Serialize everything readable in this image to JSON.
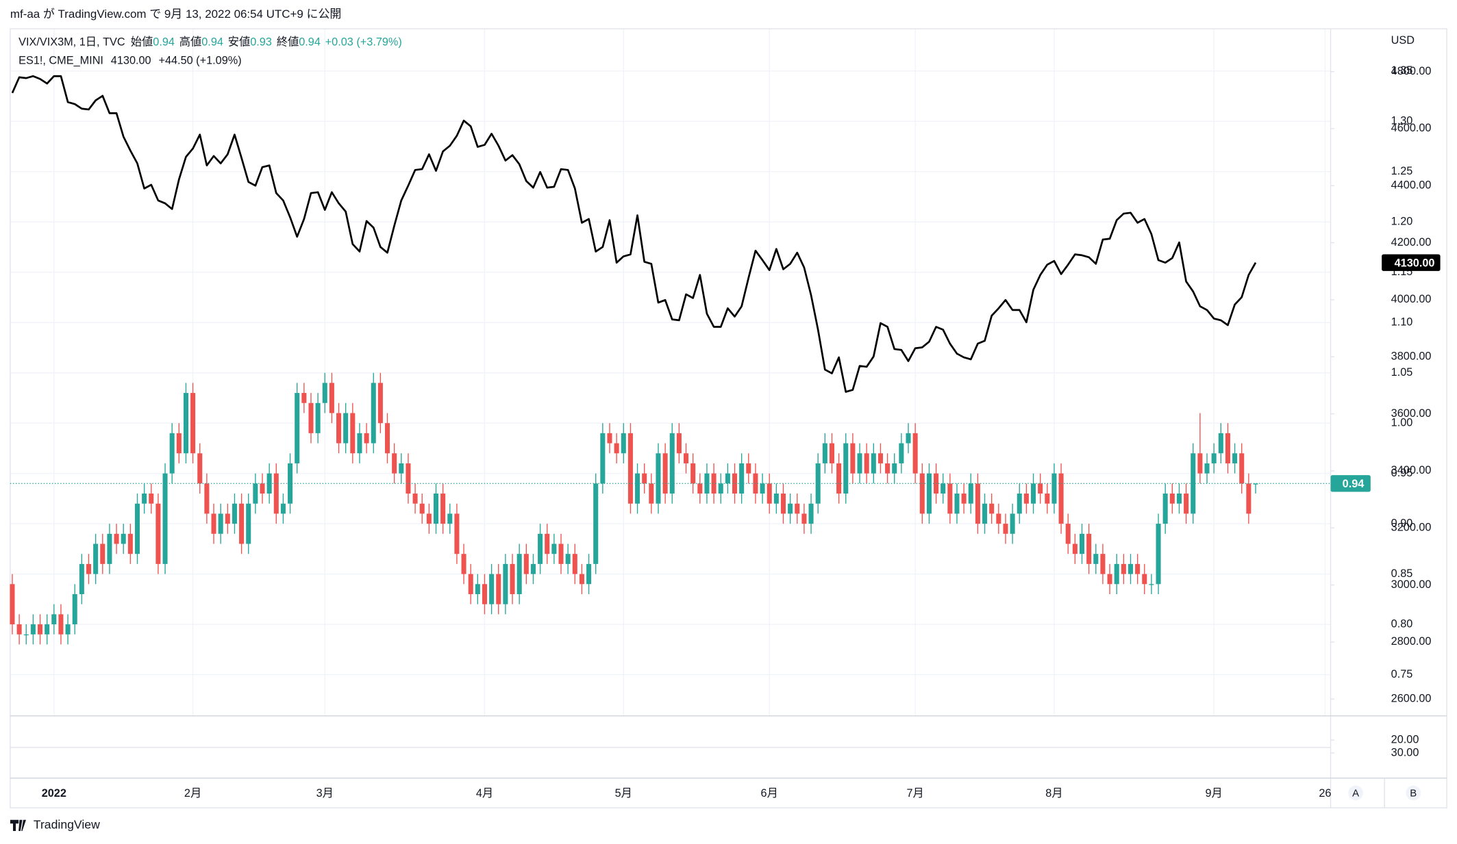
{
  "header": {
    "published": "mf-aa が TradingView.com で 9月 13, 2022 06:54 UTC+9 に公開",
    "brand": "TradingView",
    "buttons": [
      "A",
      "B"
    ]
  },
  "chart_data": {
    "type": "candlestick",
    "legend": {
      "ohlc_labels": [
        "始値",
        "高値",
        "安値",
        "終値"
      ]
    },
    "currency": "USD",
    "x": [
      0,
      1,
      2,
      3,
      4,
      5,
      6,
      7,
      8,
      9,
      10,
      11,
      12,
      13,
      14,
      15,
      16,
      17,
      18,
      19,
      20,
      21,
      22,
      23,
      24,
      25,
      26,
      27,
      28,
      29,
      30,
      31,
      32,
      33,
      34,
      35,
      36,
      37,
      38,
      39,
      40,
      41,
      42,
      43,
      44,
      45,
      46,
      47,
      48,
      49,
      50,
      51,
      52,
      53,
      54,
      55,
      56,
      57,
      58,
      59,
      60,
      61,
      62,
      63,
      64,
      65,
      66,
      67,
      68,
      69,
      70,
      71,
      72,
      73,
      74,
      75,
      76,
      77,
      78,
      79,
      80,
      81,
      82,
      83,
      84,
      85,
      86,
      87,
      88,
      89,
      90,
      91,
      92,
      93,
      94,
      95,
      96,
      97,
      98,
      99,
      100,
      101,
      102,
      103,
      104,
      105,
      106,
      107,
      108,
      109,
      110,
      111,
      112,
      113,
      114,
      115,
      116,
      117,
      118,
      119,
      120,
      121,
      122,
      123,
      124,
      125,
      126,
      127,
      128,
      129,
      130,
      131,
      132,
      133,
      134,
      135,
      136,
      137,
      138,
      139,
      140,
      141,
      142,
      143,
      144,
      145,
      146,
      147,
      148,
      149,
      150,
      151,
      152,
      153,
      154,
      155,
      156,
      157,
      158,
      159,
      160,
      161,
      162,
      163,
      164,
      165,
      166,
      167,
      168,
      169,
      170,
      171,
      172,
      173,
      174,
      175,
      176,
      177,
      178,
      179
    ],
    "xlim": [
      -0.3,
      189.8
    ],
    "xticks": [
      {
        "value": 6,
        "label": "2022"
      },
      {
        "value": 26,
        "label": "2月"
      },
      {
        "value": 45,
        "label": "3月"
      },
      {
        "value": 68,
        "label": "4月"
      },
      {
        "value": 88,
        "label": "5月"
      },
      {
        "value": 109,
        "label": "6月"
      },
      {
        "value": 130,
        "label": "7月"
      },
      {
        "value": 150,
        "label": "8月"
      },
      {
        "value": 173,
        "label": "9月"
      },
      {
        "value": 189,
        "label": "26"
      }
    ],
    "ylim": [
      0.709,
      1.392
    ],
    "yticks": [
      0.75,
      {
        "value": 0.8,
        "label": "0.80"
      },
      0.85,
      {
        "value": 0.9,
        "label": "0.90"
      },
      0.95,
      {
        "value": 1.0,
        "label": "1.00"
      },
      1.05,
      {
        "value": 1.1,
        "label": "1.10"
      },
      1.15,
      {
        "value": 1.2,
        "label": "1.20"
      },
      1.25,
      {
        "value": 1.3,
        "label": "1.30"
      },
      1.35
    ],
    "y2lim": [
      2541,
      4950
    ],
    "y2ticks": [
      {
        "value": 2600,
        "label": "2600.00"
      },
      {
        "value": 2800,
        "label": "2800.00"
      },
      {
        "value": 3000,
        "label": "3000.00"
      },
      {
        "value": 3200,
        "label": "3200.00"
      },
      {
        "value": 3400,
        "label": "3400.00"
      },
      {
        "value": 3600,
        "label": "3600.00"
      },
      {
        "value": 3800,
        "label": "3800.00"
      },
      {
        "value": 4000,
        "label": "4000.00"
      },
      {
        "value": 4200,
        "label": "4200.00"
      },
      {
        "value": 4400,
        "label": "4400.00"
      },
      {
        "value": 4600,
        "label": "4600.00"
      },
      {
        "value": 4800,
        "label": "4800.00"
      }
    ],
    "grid": true,
    "subpane": {
      "ylim": [
        1.4,
        49.3
      ],
      "inverted": true,
      "yticks": [
        {
          "value": 20,
          "label": "20.00"
        },
        {
          "value": 30,
          "label": "30.00"
        }
      ]
    },
    "series": [
      {
        "name": "VIX/VIX3M, 1日, TVC",
        "type": "candlestick",
        "up_color": "#26a69a",
        "down_color": "#ef5350",
        "change": "+0.03 (+3.79%)",
        "open": [
          0.84,
          0.8,
          0.79,
          0.79,
          0.8,
          0.79,
          0.8,
          0.81,
          0.79,
          0.8,
          0.83,
          0.86,
          0.85,
          0.88,
          0.86,
          0.89,
          0.88,
          0.89,
          0.87,
          0.92,
          0.93,
          0.92,
          0.86,
          0.95,
          0.99,
          0.97,
          1.03,
          0.97,
          0.94,
          0.91,
          0.89,
          0.91,
          0.9,
          0.92,
          0.88,
          0.92,
          0.94,
          0.93,
          0.95,
          0.91,
          0.92,
          0.96,
          1.03,
          1.02,
          0.99,
          1.02,
          1.04,
          1.01,
          0.98,
          1.01,
          0.97,
          0.99,
          0.98,
          1.04,
          1.0,
          0.97,
          0.95,
          0.96,
          0.93,
          0.92,
          0.91,
          0.9,
          0.93,
          0.9,
          0.91,
          0.87,
          0.85,
          0.83,
          0.84,
          0.82,
          0.85,
          0.82,
          0.86,
          0.83,
          0.87,
          0.85,
          0.86,
          0.89,
          0.87,
          0.88,
          0.86,
          0.87,
          0.85,
          0.84,
          0.86,
          0.94,
          0.99,
          0.98,
          0.97,
          0.99,
          0.92,
          0.95,
          0.94,
          0.92,
          0.97,
          0.93,
          0.99,
          0.97,
          0.96,
          0.94,
          0.93,
          0.95,
          0.93,
          0.94,
          0.95,
          0.93,
          0.96,
          0.95,
          0.93,
          0.94,
          0.92,
          0.93,
          0.91,
          0.92,
          0.91,
          0.9,
          0.92,
          0.96,
          0.98,
          0.96,
          0.93,
          0.98,
          0.95,
          0.97,
          0.95,
          0.97,
          0.96,
          0.95,
          0.96,
          0.98,
          0.99,
          0.95,
          0.91,
          0.95,
          0.93,
          0.94,
          0.91,
          0.93,
          0.92,
          0.94,
          0.9,
          0.92,
          0.91,
          0.9,
          0.89,
          0.91,
          0.93,
          0.92,
          0.94,
          0.93,
          0.92,
          0.95,
          0.9,
          0.88,
          0.87,
          0.89,
          0.86,
          0.87,
          0.85,
          0.84,
          0.86,
          0.85,
          0.86,
          0.85,
          0.84,
          0.84,
          0.9,
          0.93,
          0.92,
          0.93,
          0.91,
          0.97,
          0.95,
          0.96,
          0.97,
          0.99,
          0.96,
          0.97,
          0.94,
          0.94
        ],
        "high": [
          0.85,
          0.81,
          0.8,
          0.81,
          0.81,
          0.81,
          0.82,
          0.82,
          0.81,
          0.84,
          0.87,
          0.87,
          0.89,
          0.89,
          0.9,
          0.9,
          0.9,
          0.9,
          0.93,
          0.94,
          0.94,
          0.93,
          0.96,
          1.0,
          1.0,
          1.04,
          1.04,
          0.98,
          0.95,
          0.92,
          0.92,
          0.92,
          0.93,
          0.93,
          0.93,
          0.95,
          0.95,
          0.96,
          0.96,
          0.93,
          0.97,
          1.04,
          1.04,
          1.03,
          1.03,
          1.05,
          1.05,
          1.02,
          1.02,
          1.02,
          1.0,
          1.0,
          1.05,
          1.05,
          1.01,
          0.98,
          0.97,
          0.97,
          0.94,
          0.93,
          0.92,
          0.94,
          0.94,
          0.92,
          0.92,
          0.88,
          0.86,
          0.85,
          0.85,
          0.86,
          0.86,
          0.87,
          0.87,
          0.88,
          0.88,
          0.87,
          0.9,
          0.9,
          0.89,
          0.89,
          0.88,
          0.88,
          0.86,
          0.87,
          0.95,
          1.0,
          1.0,
          0.99,
          1.0,
          1.0,
          0.96,
          0.96,
          0.95,
          0.98,
          0.98,
          1.0,
          1.0,
          0.98,
          0.97,
          0.95,
          0.96,
          0.96,
          0.95,
          0.96,
          0.96,
          0.97,
          0.97,
          0.96,
          0.95,
          0.95,
          0.94,
          0.94,
          0.93,
          0.93,
          0.92,
          0.93,
          0.97,
          0.99,
          0.99,
          0.97,
          0.99,
          0.99,
          0.98,
          0.98,
          0.98,
          0.98,
          0.97,
          0.97,
          0.99,
          1.0,
          1.0,
          0.96,
          0.96,
          0.96,
          0.95,
          0.95,
          0.94,
          0.94,
          0.95,
          0.95,
          0.93,
          0.93,
          0.92,
          0.91,
          0.92,
          0.94,
          0.94,
          0.95,
          0.95,
          0.94,
          0.96,
          0.96,
          0.91,
          0.89,
          0.9,
          0.9,
          0.88,
          0.88,
          0.86,
          0.87,
          0.87,
          0.87,
          0.87,
          0.86,
          0.85,
          0.91,
          0.94,
          0.94,
          0.94,
          0.94,
          0.98,
          1.01,
          0.97,
          0.98,
          1.0,
          1.0,
          0.98,
          0.98,
          0.95,
          0.94
        ],
        "low": [
          0.79,
          0.78,
          0.78,
          0.78,
          0.78,
          0.78,
          0.79,
          0.78,
          0.78,
          0.79,
          0.82,
          0.84,
          0.84,
          0.85,
          0.85,
          0.87,
          0.87,
          0.86,
          0.86,
          0.91,
          0.91,
          0.85,
          0.85,
          0.94,
          0.96,
          0.96,
          0.96,
          0.93,
          0.9,
          0.88,
          0.88,
          0.89,
          0.89,
          0.87,
          0.87,
          0.91,
          0.92,
          0.92,
          0.9,
          0.9,
          0.91,
          0.95,
          1.01,
          0.98,
          0.98,
          1.01,
          1.0,
          0.97,
          0.97,
          0.96,
          0.96,
          0.97,
          0.97,
          0.99,
          0.96,
          0.94,
          0.94,
          0.92,
          0.91,
          0.9,
          0.89,
          0.89,
          0.89,
          0.89,
          0.86,
          0.84,
          0.82,
          0.82,
          0.81,
          0.81,
          0.81,
          0.81,
          0.82,
          0.82,
          0.84,
          0.84,
          0.85,
          0.86,
          0.86,
          0.85,
          0.85,
          0.84,
          0.83,
          0.83,
          0.85,
          0.93,
          0.97,
          0.96,
          0.96,
          0.91,
          0.91,
          0.93,
          0.91,
          0.91,
          0.92,
          0.92,
          0.96,
          0.95,
          0.93,
          0.92,
          0.92,
          0.92,
          0.92,
          0.93,
          0.92,
          0.92,
          0.94,
          0.92,
          0.92,
          0.91,
          0.91,
          0.9,
          0.9,
          0.9,
          0.89,
          0.89,
          0.91,
          0.95,
          0.95,
          0.92,
          0.92,
          0.94,
          0.94,
          0.94,
          0.94,
          0.95,
          0.94,
          0.94,
          0.95,
          0.97,
          0.94,
          0.9,
          0.9,
          0.92,
          0.92,
          0.9,
          0.9,
          0.91,
          0.91,
          0.89,
          0.89,
          0.9,
          0.89,
          0.88,
          0.88,
          0.9,
          0.91,
          0.91,
          0.92,
          0.91,
          0.91,
          0.89,
          0.87,
          0.86,
          0.86,
          0.85,
          0.85,
          0.84,
          0.83,
          0.83,
          0.84,
          0.84,
          0.84,
          0.83,
          0.83,
          0.83,
          0.89,
          0.91,
          0.91,
          0.9,
          0.9,
          0.94,
          0.94,
          0.95,
          0.96,
          0.95,
          0.95,
          0.93,
          0.9,
          0.93
        ],
        "close": [
          0.8,
          0.79,
          0.79,
          0.8,
          0.79,
          0.8,
          0.81,
          0.79,
          0.8,
          0.83,
          0.86,
          0.85,
          0.88,
          0.86,
          0.89,
          0.88,
          0.89,
          0.87,
          0.92,
          0.93,
          0.92,
          0.86,
          0.95,
          0.99,
          0.97,
          1.03,
          0.97,
          0.94,
          0.91,
          0.89,
          0.91,
          0.9,
          0.92,
          0.88,
          0.92,
          0.94,
          0.93,
          0.95,
          0.91,
          0.92,
          0.96,
          1.03,
          1.02,
          0.99,
          1.02,
          1.04,
          1.01,
          0.98,
          1.01,
          0.97,
          0.99,
          0.98,
          1.04,
          1.0,
          0.97,
          0.95,
          0.96,
          0.93,
          0.92,
          0.91,
          0.9,
          0.93,
          0.9,
          0.91,
          0.87,
          0.85,
          0.83,
          0.84,
          0.82,
          0.85,
          0.82,
          0.86,
          0.83,
          0.87,
          0.85,
          0.86,
          0.89,
          0.87,
          0.88,
          0.86,
          0.87,
          0.85,
          0.84,
          0.86,
          0.94,
          0.99,
          0.98,
          0.97,
          0.99,
          0.92,
          0.95,
          0.94,
          0.92,
          0.97,
          0.93,
          0.99,
          0.97,
          0.96,
          0.94,
          0.93,
          0.95,
          0.93,
          0.94,
          0.95,
          0.93,
          0.96,
          0.95,
          0.93,
          0.94,
          0.92,
          0.93,
          0.91,
          0.92,
          0.91,
          0.9,
          0.92,
          0.96,
          0.98,
          0.96,
          0.93,
          0.98,
          0.95,
          0.97,
          0.95,
          0.97,
          0.96,
          0.95,
          0.96,
          0.98,
          0.99,
          0.95,
          0.91,
          0.95,
          0.93,
          0.94,
          0.91,
          0.93,
          0.92,
          0.94,
          0.9,
          0.92,
          0.91,
          0.9,
          0.89,
          0.91,
          0.93,
          0.92,
          0.94,
          0.93,
          0.92,
          0.95,
          0.9,
          0.88,
          0.87,
          0.89,
          0.86,
          0.87,
          0.85,
          0.84,
          0.86,
          0.85,
          0.86,
          0.85,
          0.84,
          0.84,
          0.9,
          0.93,
          0.92,
          0.93,
          0.91,
          0.97,
          0.95,
          0.96,
          0.97,
          0.99,
          0.96,
          0.97,
          0.94,
          0.91,
          0.94
        ]
      },
      {
        "name": "ES1!, CME_MINI",
        "type": "line",
        "axis": "y2",
        "color": "#000000",
        "last_label": "4130.00",
        "change": "+44.50 (+1.09%)",
        "values": [
          4725,
          4780,
          4777,
          4784,
          4774,
          4758,
          4784,
          4784,
          4693,
          4686,
          4670,
          4667,
          4699,
          4715,
          4654,
          4654,
          4572,
          4523,
          4478,
          4390,
          4403,
          4348,
          4338,
          4318,
          4422,
          4501,
          4530,
          4579,
          4471,
          4504,
          4478,
          4510,
          4579,
          4497,
          4413,
          4400,
          4465,
          4471,
          4374,
          4348,
          4289,
          4221,
          4283,
          4374,
          4377,
          4315,
          4377,
          4338,
          4309,
          4195,
          4169,
          4276,
          4253,
          4185,
          4165,
          4260,
          4348,
          4400,
          4455,
          4458,
          4510,
          4452,
          4520,
          4540,
          4575,
          4628,
          4608,
          4536,
          4543,
          4582,
          4540,
          4488,
          4507,
          4475,
          4416,
          4393,
          4448,
          4393,
          4396,
          4458,
          4455,
          4390,
          4270,
          4283,
          4169,
          4185,
          4279,
          4130,
          4152,
          4159,
          4296,
          4133,
          4126,
          3990,
          3999,
          3931,
          3928,
          4019,
          4006,
          4087,
          3951,
          3905,
          3905,
          3970,
          3941,
          3977,
          4077,
          4172,
          4139,
          4104,
          4178,
          4107,
          4126,
          4165,
          4113,
          4016,
          3895,
          3755,
          3742,
          3798,
          3677,
          3684,
          3768,
          3765,
          3801,
          3918,
          3905,
          3827,
          3824,
          3785,
          3830,
          3833,
          3853,
          3905,
          3895,
          3846,
          3811,
          3798,
          3791,
          3846,
          3856,
          3944,
          3970,
          3999,
          3964,
          3964,
          3921,
          4035,
          4087,
          4123,
          4136,
          4090,
          4123,
          4159,
          4156,
          4149,
          4126,
          4211,
          4214,
          4279,
          4302,
          4305,
          4270,
          4283,
          4230,
          4139,
          4130,
          4146,
          4201,
          4064,
          4029,
          3977,
          3964,
          3934,
          3928,
          3911,
          3983,
          4009,
          4087,
          4130
        ]
      }
    ]
  }
}
